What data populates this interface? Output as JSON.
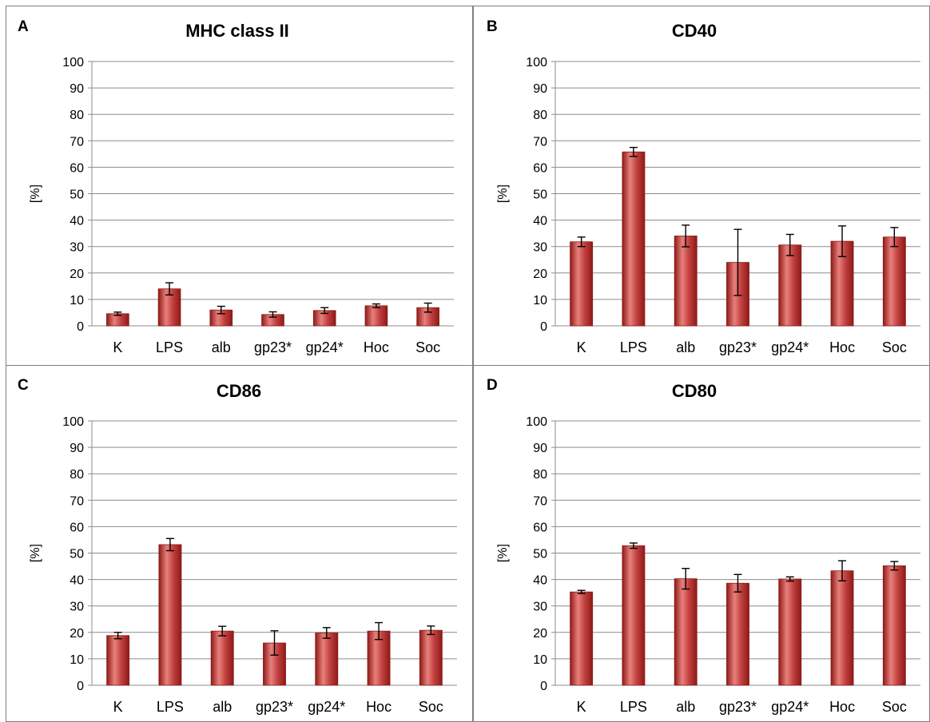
{
  "colors": {
    "bar": "#c0403e",
    "bar_light": "#e8807c",
    "bar_dark": "#8e1a18",
    "grid": "#8c8c8c",
    "border": "#7f7f7f"
  },
  "chart_data": [
    {
      "panel": "A",
      "type": "bar",
      "title": "MHC class II",
      "xlabel": "",
      "ylabel": "[%]",
      "ylim": [
        0,
        100
      ],
      "yticks": [
        "0",
        "10",
        "20",
        "30",
        "40",
        "50",
        "60",
        "70",
        "80",
        "90",
        "100"
      ],
      "categories": [
        "K",
        "LPS",
        "alb",
        "gp23*",
        "gp24*",
        "Hoc",
        "Soc"
      ],
      "values": [
        4.6,
        14.0,
        6.0,
        4.3,
        5.8,
        7.6,
        6.9
      ],
      "errors": [
        0.6,
        2.3,
        1.4,
        1.0,
        1.1,
        0.7,
        1.7
      ],
      "grid": true,
      "legend": "none"
    },
    {
      "panel": "B",
      "type": "bar",
      "title": "CD40",
      "xlabel": "",
      "ylabel": "[%]",
      "ylim": [
        0,
        100
      ],
      "yticks": [
        "0",
        "10",
        "20",
        "30",
        "40",
        "50",
        "60",
        "70",
        "80",
        "90",
        "100"
      ],
      "categories": [
        "K",
        "LPS",
        "alb",
        "gp23*",
        "gp24*",
        "Hoc",
        "Soc"
      ],
      "values": [
        31.8,
        65.8,
        34.0,
        24.0,
        30.6,
        32.0,
        33.6
      ],
      "errors": [
        1.8,
        1.7,
        4.1,
        12.5,
        4.0,
        5.8,
        3.6
      ],
      "grid": true,
      "legend": "none"
    },
    {
      "panel": "C",
      "type": "bar",
      "title": "CD86",
      "xlabel": "",
      "ylabel": "[%]",
      "ylim": [
        0,
        100
      ],
      "yticks": [
        "0",
        "10",
        "20",
        "30",
        "40",
        "50",
        "60",
        "70",
        "80",
        "90",
        "100"
      ],
      "categories": [
        "K",
        "LPS",
        "alb",
        "gp23*",
        "gp24*",
        "Hoc",
        "Soc"
      ],
      "values": [
        18.8,
        53.2,
        20.5,
        16.0,
        19.8,
        20.5,
        20.8
      ],
      "errors": [
        1.2,
        2.3,
        1.8,
        4.6,
        2.0,
        3.2,
        1.6
      ],
      "grid": true,
      "legend": "none"
    },
    {
      "panel": "D",
      "type": "bar",
      "title": "CD80",
      "xlabel": "",
      "ylabel": "[%]",
      "ylim": [
        0,
        100
      ],
      "yticks": [
        "0",
        "10",
        "20",
        "30",
        "40",
        "50",
        "60",
        "70",
        "80",
        "90",
        "100"
      ],
      "categories": [
        "K",
        "LPS",
        "alb",
        "gp23*",
        "gp24*",
        "Hoc",
        "Soc"
      ],
      "values": [
        35.3,
        52.8,
        40.3,
        38.6,
        40.2,
        43.3,
        45.2
      ],
      "errors": [
        0.6,
        1.0,
        3.9,
        3.3,
        0.8,
        3.8,
        1.6
      ],
      "grid": true,
      "legend": "none"
    }
  ]
}
